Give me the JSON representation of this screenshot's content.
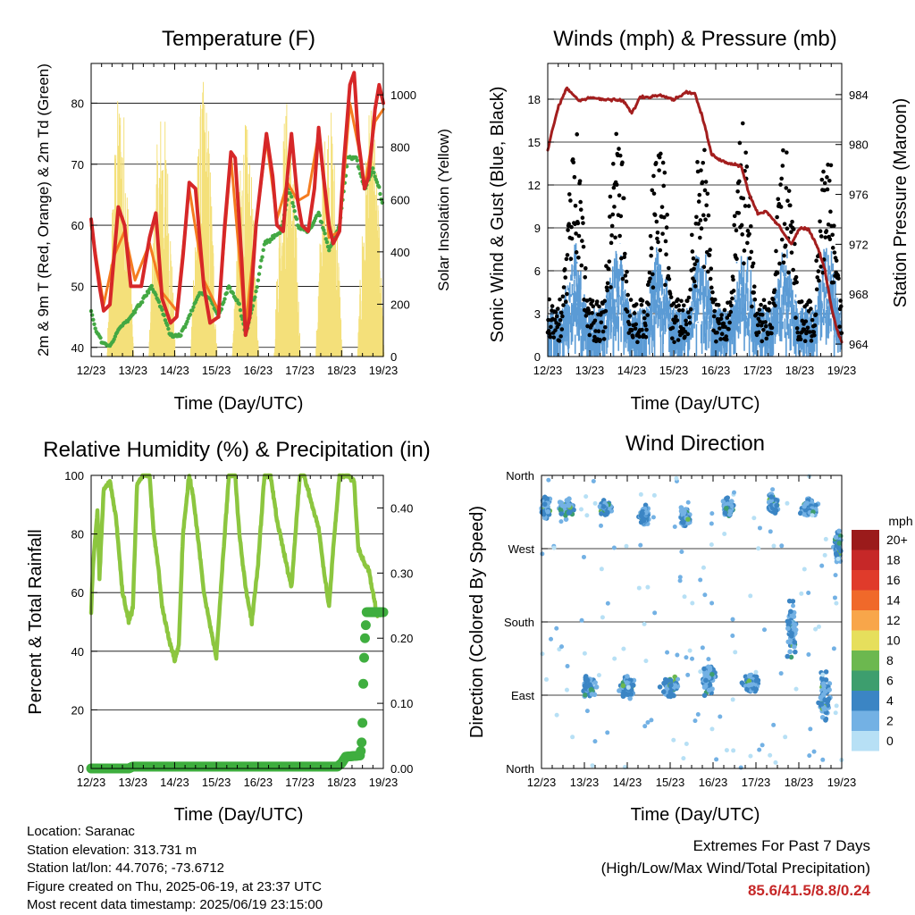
{
  "x_ticks": [
    "12/23",
    "13/23",
    "14/23",
    "15/23",
    "16/23",
    "17/23",
    "18/23",
    "19/23"
  ],
  "x_axis_label": "Time (Day/UTC)",
  "colors": {
    "temp2m": "#d62728",
    "temp9m": "#f57c20",
    "dewpoint": "#43a843",
    "solar": "#f4e07a",
    "wind": "#5b9bd5",
    "gust": "#000000",
    "pressure": "#a31e1e",
    "rh": "#8cc63f",
    "precip": "#3fae3f"
  },
  "chart_data": [
    {
      "id": "temperature",
      "type": "line",
      "title": "Temperature (F)",
      "xlabel": "Time (Day/UTC)",
      "ylabel": "2m & 9m T (Red, Orange) & 2m Td (Green)",
      "ylabel_right": "Solar Insolation (Yellow)",
      "x_range": [
        0,
        7
      ],
      "ylim": [
        38.5,
        86.5
      ],
      "ylim_right": [
        0,
        1120
      ],
      "yticks": [
        40,
        50,
        60,
        70,
        80
      ],
      "yticks_right": [
        0,
        200,
        400,
        600,
        800,
        1000
      ],
      "grid": true,
      "series": [
        {
          "name": "2m T",
          "color": "#d62728",
          "x": [
            0,
            0.1,
            0.2,
            0.3,
            0.45,
            0.55,
            0.65,
            0.8,
            0.95,
            1.05,
            1.2,
            1.4,
            1.55,
            1.7,
            1.9,
            2.05,
            2.2,
            2.35,
            2.5,
            2.7,
            2.85,
            3.05,
            3.2,
            3.35,
            3.45,
            3.6,
            3.7,
            3.8,
            3.95,
            4.05,
            4.2,
            4.35,
            4.45,
            4.6,
            4.7,
            4.8,
            4.95,
            5.05,
            5.2,
            5.35,
            5.45,
            5.55,
            5.7,
            5.8,
            5.95,
            6.05,
            6.2,
            6.3,
            6.4,
            6.55,
            6.65,
            6.8,
            6.9,
            7.0
          ],
          "y": [
            61,
            55,
            50,
            46,
            47,
            55,
            63,
            60,
            50,
            50,
            50,
            58,
            62,
            48,
            44,
            45,
            55,
            67,
            66,
            50,
            44,
            45,
            60,
            72,
            71,
            55,
            42,
            45,
            60,
            66,
            75,
            68,
            60,
            59,
            68,
            75,
            64,
            60,
            59,
            66,
            76,
            69,
            60,
            57,
            59,
            70,
            83,
            85,
            74,
            66,
            68,
            79,
            83,
            80
          ]
        },
        {
          "name": "9m T",
          "color": "#f57c20",
          "x": [
            0,
            0.3,
            0.55,
            0.8,
            1.05,
            1.4,
            1.7,
            2.05,
            2.35,
            2.7,
            3.05,
            3.35,
            3.7,
            3.95,
            4.2,
            4.45,
            4.7,
            4.95,
            5.2,
            5.45,
            5.7,
            5.95,
            6.2,
            6.4,
            6.55,
            6.8,
            7.0
          ],
          "y": [
            60,
            47,
            55,
            59,
            51,
            57,
            49,
            46,
            66,
            51,
            46,
            71,
            43,
            60,
            74,
            61,
            67,
            64,
            65,
            75,
            58,
            59,
            80,
            73,
            66,
            77,
            79
          ]
        },
        {
          "name": "2m Td",
          "color": "#43a843",
          "x": [
            0,
            0.1,
            0.25,
            0.45,
            0.65,
            0.95,
            1.25,
            1.45,
            1.65,
            1.9,
            2.15,
            2.35,
            2.6,
            2.85,
            3.05,
            3.3,
            3.55,
            3.7,
            3.95,
            4.15,
            4.35,
            4.55,
            4.75,
            4.95,
            5.2,
            5.45,
            5.7,
            5.95,
            6.15,
            6.35,
            6.55,
            6.75,
            6.9,
            7.0
          ],
          "y": [
            46,
            43,
            41,
            40,
            43,
            45,
            48,
            50,
            47,
            42,
            42,
            45,
            49,
            48,
            45,
            50,
            47,
            42,
            49,
            57,
            58,
            59,
            66,
            60,
            59,
            62,
            56,
            60,
            71,
            71,
            66,
            69,
            66,
            63
          ]
        }
      ],
      "solar_series": {
        "name": "Solar Insolation",
        "color": "#f4e07a",
        "days": [
          0,
          1,
          2,
          3,
          4,
          5,
          6
        ],
        "peak_w_m2": [
          1050,
          980,
          1060,
          900,
          1000,
          980,
          950
        ],
        "noon_offset": 0.7
      }
    },
    {
      "id": "winds",
      "type": "scatter",
      "title": "Winds (mph) & Pressure (mb)",
      "xlabel": "Time (Day/UTC)",
      "ylabel": "Sonic Wind & Gust (Blue, Black)",
      "ylabel_right": "Station Pressure (Maroon)",
      "x_range": [
        0,
        7
      ],
      "ylim": [
        0,
        20.5
      ],
      "ylim_right": [
        963,
        986.5
      ],
      "yticks": [
        0,
        3,
        6,
        9,
        12,
        15,
        18
      ],
      "yticks_right": [
        964,
        968,
        972,
        976,
        980,
        984
      ],
      "grid": true,
      "series": [
        {
          "name": "Sonic Wind",
          "color": "#5b9bd5",
          "typical_mph": 2.5,
          "daily_peak_mph": 7
        },
        {
          "name": "Gust",
          "color": "#000000",
          "typical_mph": 5,
          "daily_peak_mph": 13
        },
        {
          "name": "Station Pressure",
          "color": "#a31e1e",
          "x": [
            0,
            0.1,
            0.25,
            0.45,
            0.55,
            0.75,
            1.0,
            1.3,
            1.5,
            1.8,
            2.0,
            2.2,
            2.4,
            2.7,
            3.0,
            3.3,
            3.5,
            3.7,
            3.9,
            4.0,
            4.2,
            4.6,
            4.8,
            5.0,
            5.2,
            5.5,
            5.8,
            6.0,
            6.2,
            6.4,
            6.6,
            6.75,
            6.9,
            7.0
          ],
          "y": [
            979.5,
            981,
            983,
            984.5,
            984.2,
            983.5,
            983.8,
            983.6,
            983.6,
            983.5,
            982.5,
            983.8,
            983.8,
            984,
            983.6,
            984.2,
            984.1,
            982,
            979.2,
            979,
            978.6,
            978.3,
            976,
            974.5,
            974.6,
            973.5,
            972,
            973.3,
            973.2,
            972,
            970,
            967,
            965,
            964.2
          ]
        }
      ]
    },
    {
      "id": "humidity",
      "type": "line",
      "title": "Relative Humidity (%) & Precipitation (in)",
      "xlabel": "Time (Day/UTC)",
      "ylabel": "Percent & Total Rainfall",
      "x_range": [
        0,
        7
      ],
      "ylim": [
        0,
        100
      ],
      "ylim_right": [
        0,
        0.45
      ],
      "yticks": [
        0,
        20,
        40,
        60,
        80,
        100
      ],
      "yticks_right": [
        "0.00",
        "0.10",
        "0.20",
        "0.30",
        "0.40"
      ],
      "grid": true,
      "series": [
        {
          "name": "Relative Humidity",
          "color": "#8cc63f",
          "x": [
            0,
            0.05,
            0.15,
            0.2,
            0.3,
            0.45,
            0.6,
            0.75,
            0.9,
            1.0,
            1.1,
            1.25,
            1.4,
            1.5,
            1.6,
            1.7,
            1.85,
            2.0,
            2.1,
            2.2,
            2.35,
            2.45,
            2.55,
            2.7,
            2.9,
            3.0,
            3.15,
            3.3,
            3.45,
            3.55,
            3.7,
            3.85,
            4.0,
            4.15,
            4.3,
            4.45,
            4.6,
            4.7,
            4.8,
            5.0,
            5.1,
            5.25,
            5.45,
            5.6,
            5.7,
            5.8,
            5.95,
            6.15,
            6.3,
            6.4,
            6.55,
            6.65,
            6.75,
            6.85,
            7.0
          ],
          "y": [
            54,
            70,
            88,
            65,
            95,
            98,
            85,
            60,
            50,
            55,
            97,
            100,
            100,
            80,
            70,
            55,
            45,
            37,
            42,
            80,
            100,
            92,
            80,
            60,
            45,
            38,
            70,
            100,
            100,
            80,
            62,
            50,
            70,
            100,
            100,
            85,
            75,
            68,
            62,
            100,
            100,
            92,
            82,
            65,
            55,
            75,
            100,
            100,
            98,
            75,
            70,
            68,
            60,
            52,
            53
          ]
        },
        {
          "name": "Total Precipitation",
          "color": "#3fae3f",
          "x": [
            0,
            0.9,
            1.0,
            1.2,
            5.9,
            6.0,
            6.1,
            6.45,
            6.48,
            6.5,
            6.52,
            6.55,
            6.6,
            7.0
          ],
          "y": [
            0,
            0,
            0.003,
            0.003,
            0.003,
            0.008,
            0.018,
            0.02,
            0.04,
            0.07,
            0.13,
            0.19,
            0.24,
            0.24
          ]
        }
      ]
    },
    {
      "id": "direction",
      "type": "scatter",
      "title": "Wind Direction",
      "xlabel": "Time (Day/UTC)",
      "ylabel": "Direction (Colored By Speed)",
      "x_range": [
        0,
        7
      ],
      "yticks": [
        "North",
        "East",
        "South",
        "West",
        "North"
      ],
      "grid": true,
      "legend": {
        "title": "mph",
        "position": "right",
        "labels": [
          "20+",
          "18",
          "16",
          "14",
          "12",
          "10",
          "8",
          "6",
          "4",
          "2",
          "0"
        ],
        "colors": [
          "#9b1b1b",
          "#c62828",
          "#e03b2b",
          "#f0692a",
          "#f8a64a",
          "#e6df5c",
          "#6cb84f",
          "#3d9e6e",
          "#3b85c4",
          "#73b1e4",
          "#b7e0f5"
        ]
      },
      "clusters": [
        {
          "center_x": 0.1,
          "center_deg": 320,
          "spread_x": 0.15,
          "spread_deg": 20
        },
        {
          "center_x": 0.6,
          "center_deg": 320,
          "spread_x": 0.25,
          "spread_deg": 15
        },
        {
          "center_x": 1.1,
          "center_deg": 100,
          "spread_x": 0.2,
          "spread_deg": 15
        },
        {
          "center_x": 1.5,
          "center_deg": 320,
          "spread_x": 0.2,
          "spread_deg": 15
        },
        {
          "center_x": 2.0,
          "center_deg": 100,
          "spread_x": 0.25,
          "spread_deg": 18
        },
        {
          "center_x": 2.4,
          "center_deg": 310,
          "spread_x": 0.15,
          "spread_deg": 15
        },
        {
          "center_x": 3.0,
          "center_deg": 100,
          "spread_x": 0.25,
          "spread_deg": 15
        },
        {
          "center_x": 3.35,
          "center_deg": 310,
          "spread_x": 0.15,
          "spread_deg": 15
        },
        {
          "center_x": 3.9,
          "center_deg": 110,
          "spread_x": 0.2,
          "spread_deg": 25
        },
        {
          "center_x": 4.35,
          "center_deg": 320,
          "spread_x": 0.2,
          "spread_deg": 15
        },
        {
          "center_x": 4.9,
          "center_deg": 105,
          "spread_x": 0.25,
          "spread_deg": 15
        },
        {
          "center_x": 5.4,
          "center_deg": 325,
          "spread_x": 0.15,
          "spread_deg": 15
        },
        {
          "center_x": 5.85,
          "center_deg": 170,
          "spread_x": 0.15,
          "spread_deg": 45
        },
        {
          "center_x": 6.25,
          "center_deg": 320,
          "spread_x": 0.25,
          "spread_deg": 15
        },
        {
          "center_x": 6.6,
          "center_deg": 90,
          "spread_x": 0.2,
          "spread_deg": 40
        },
        {
          "center_x": 6.9,
          "center_deg": 270,
          "spread_x": 0.1,
          "spread_deg": 25
        }
      ]
    }
  ],
  "station_info": {
    "location": "Location: Saranac",
    "elevation": "Station elevation: 313.731 m",
    "latlon": "Station lat/lon: 44.7076; -73.6712",
    "created": "Figure created on Thu, 2025-06-19, at 23:37 UTC",
    "recent": "Most recent data timestamp: 2025/06/19 23:15:00"
  },
  "extremes": {
    "title": "Extremes For Past 7 Days",
    "subtitle": "(High/Low/Max Wind/Total Precipitation)",
    "values": "85.6/41.5/8.8/0.24"
  }
}
